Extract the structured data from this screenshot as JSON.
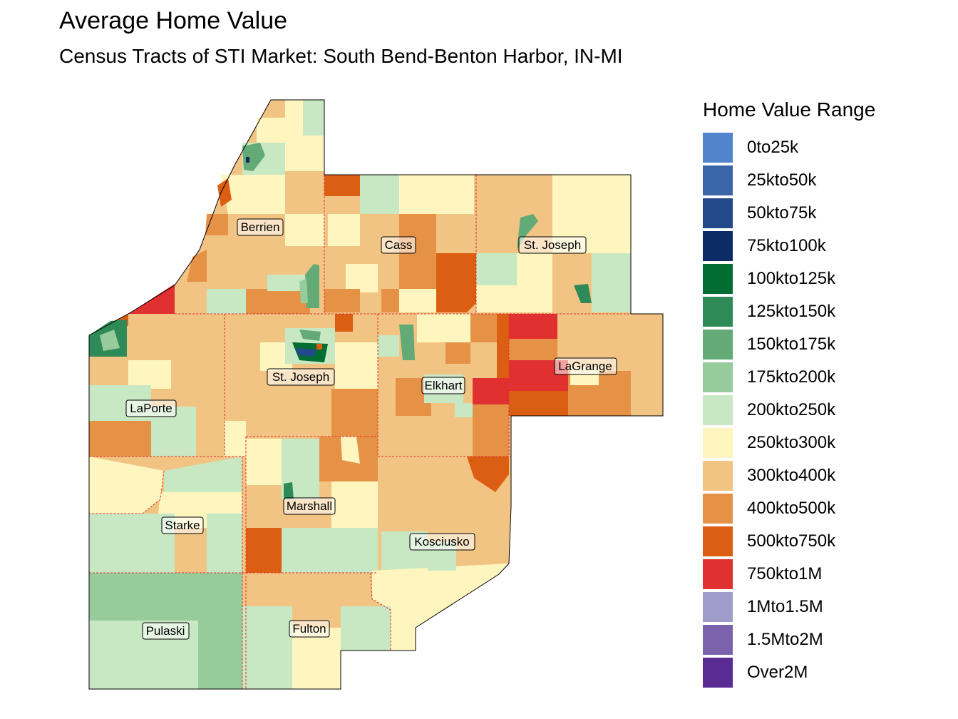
{
  "title": "Average Home Value",
  "subtitle": "Census Tracts of STI Market: South Bend-Benton Harbor, IN-MI",
  "legend": {
    "title": "Home Value Range",
    "items": [
      {
        "label": "0to25k",
        "color": "#5284cc"
      },
      {
        "label": "25kto50k",
        "color": "#3a66a8"
      },
      {
        "label": "50kto75k",
        "color": "#22498a"
      },
      {
        "label": "75kto100k",
        "color": "#0c2c66"
      },
      {
        "label": "100kto125k",
        "color": "#006d32"
      },
      {
        "label": "125kto150k",
        "color": "#2e8b57"
      },
      {
        "label": "150kto175k",
        "color": "#63aa76"
      },
      {
        "label": "175kto200k",
        "color": "#98cb9b"
      },
      {
        "label": "200kto250k",
        "color": "#c8e8c4"
      },
      {
        "label": "250kto300k",
        "color": "#fff6bf"
      },
      {
        "label": "300kto400k",
        "color": "#f2c483"
      },
      {
        "label": "400kto500k",
        "color": "#e69246"
      },
      {
        "label": "500kto750k",
        "color": "#dc5e13"
      },
      {
        "label": "750kto1M",
        "color": "#e03030"
      },
      {
        "label": "1Mto1.5M",
        "color": "#a09cca"
      },
      {
        "label": "1.5Mto2M",
        "color": "#7b62ad"
      },
      {
        "label": "Over2M",
        "color": "#5a2b93"
      }
    ]
  },
  "counties": [
    {
      "name": "Berrien"
    },
    {
      "name": "Cass"
    },
    {
      "name": "St. Joseph"
    },
    {
      "name": "St. Joseph"
    },
    {
      "name": "LaGrange"
    },
    {
      "name": "Elkhart"
    },
    {
      "name": "LaPorte"
    },
    {
      "name": "Marshall"
    },
    {
      "name": "Starke"
    },
    {
      "name": "Kosciusko"
    },
    {
      "name": "Pulaski"
    },
    {
      "name": "Fulton"
    }
  ]
}
